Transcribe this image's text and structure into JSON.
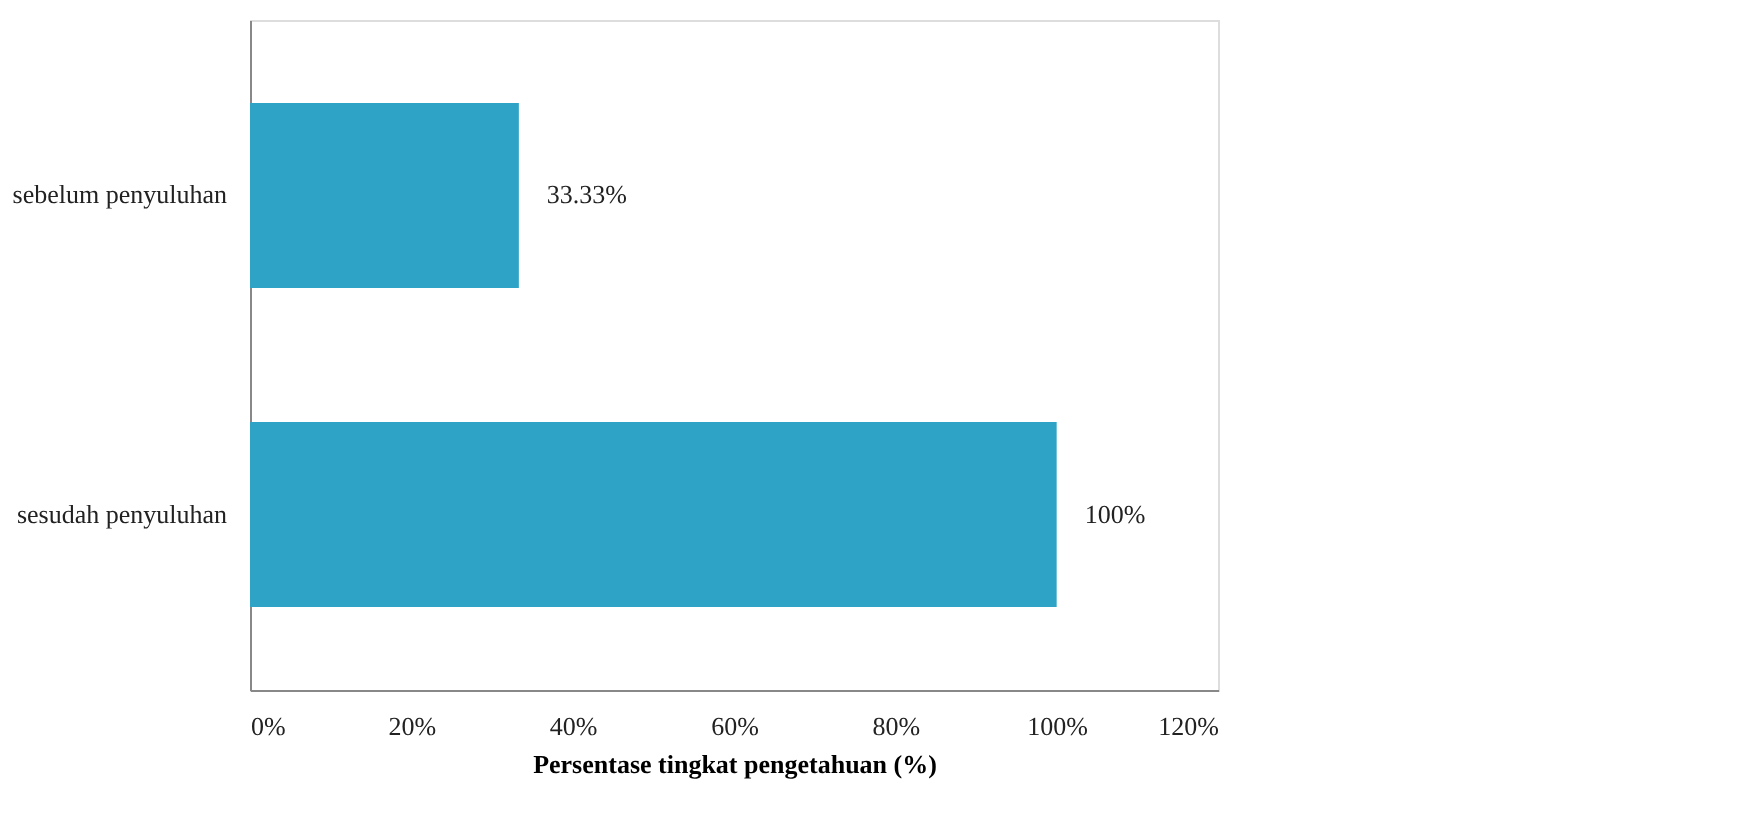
{
  "chart_data": {
    "type": "bar",
    "orientation": "horizontal",
    "xlabel": "Persentase tingkat pengetahuan  (%)",
    "categories": [
      "sebelum penyuluhan",
      "sesudah penyuluhan"
    ],
    "values": [
      33.33,
      100
    ],
    "value_labels": [
      "33.33%",
      "100%"
    ],
    "color": "#2fa3c6",
    "xlim": [
      0,
      120
    ],
    "xticks": [
      {
        "value": 0,
        "label": "0%"
      },
      {
        "value": 20,
        "label": "20%"
      },
      {
        "value": 40,
        "label": "40%"
      },
      {
        "value": 60,
        "label": "60%"
      },
      {
        "value": 80,
        "label": "80%"
      },
      {
        "value": 100,
        "label": "100%"
      },
      {
        "value": 120,
        "label": "120%"
      }
    ],
    "grid": false
  }
}
